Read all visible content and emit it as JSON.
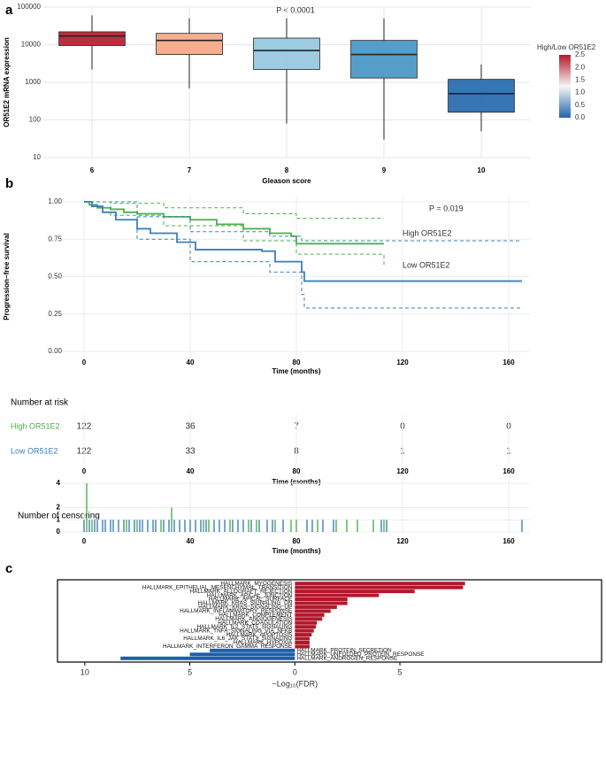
{
  "chart_data": [
    {
      "type": "box",
      "label": "a",
      "annotation": "P < 0.0001",
      "x_label": "Gleason score",
      "y_label": "OR51E2 mRNA expression",
      "categories": [
        "6",
        "7",
        "8",
        "9",
        "10"
      ],
      "min": [
        2200,
        700,
        80,
        30,
        50
      ],
      "q1": [
        9500,
        5500,
        2200,
        1300,
        160
      ],
      "median": [
        17000,
        13000,
        7000,
        5500,
        500
      ],
      "q3": [
        22000,
        20000,
        15000,
        13000,
        1200
      ],
      "max": [
        60000,
        50000,
        50000,
        50000,
        3000
      ],
      "colors": [
        "#b2182b",
        "#f4a582",
        "#92c5de",
        "#4393c3",
        "#2166ac"
      ],
      "log": true,
      "ylim": [
        10,
        100000
      ],
      "yticks": [
        10,
        100,
        1000,
        10000,
        100000
      ],
      "grid": true,
      "colorbar": {
        "title": "High/Low OR51E2",
        "range": [
          0,
          2.5
        ],
        "colors": [
          "#2166ac",
          "#f7f7f7",
          "#b2182b"
        ],
        "ticks": [
          {
            "value": 0,
            "label": "0.0"
          },
          {
            "value": 0.5,
            "label": "0.5"
          },
          {
            "value": 1,
            "label": "1.0"
          },
          {
            "value": 1.5,
            "label": "1.5"
          },
          {
            "value": 2,
            "label": "2.0"
          },
          {
            "value": 2.5,
            "label": "2.5"
          }
        ]
      }
    },
    {
      "type": "line",
      "label": "b",
      "step": true,
      "annotation": "P = 0.019",
      "x_label": "Time (months)",
      "y_label": "Progression−free survival",
      "xlim": [
        -8,
        168
      ],
      "xticks": [
        0,
        40,
        80,
        120,
        160
      ],
      "ylim": [
        -0.04,
        1.04
      ],
      "yticks": [
        {
          "value": 0,
          "label": "0.00"
        },
        {
          "value": 0.25,
          "label": "0.25"
        },
        {
          "value": 0.5,
          "label": "0.50"
        },
        {
          "value": 0.75,
          "label": "0.75"
        },
        {
          "value": 1,
          "label": "1.00"
        }
      ],
      "grid": true,
      "series": [
        {
          "name": "High OR51E2",
          "color": "#4daf4a",
          "x": [
            0,
            2,
            5,
            10,
            15,
            20,
            30,
            40,
            50,
            60,
            70,
            78,
            80,
            113
          ],
          "values": [
            1,
            0.98,
            0.96,
            0.95,
            0.93,
            0.92,
            0.9,
            0.88,
            0.85,
            0.82,
            0.79,
            0.77,
            0.72,
            0.72
          ],
          "ci_x": [
            0,
            10,
            30,
            60,
            80,
            113
          ],
          "ci_upper": [
            1,
            0.99,
            0.96,
            0.92,
            0.89,
            0.89
          ],
          "ci_lower": [
            1,
            0.91,
            0.84,
            0.74,
            0.65,
            0.57
          ]
        },
        {
          "name": "Low OR51E2",
          "color": "#3a7fbf",
          "x": [
            0,
            3,
            7,
            12,
            20,
            25,
            35,
            42,
            67,
            72,
            82,
            83,
            165
          ],
          "values": [
            1,
            0.97,
            0.93,
            0.88,
            0.82,
            0.79,
            0.73,
            0.68,
            0.67,
            0.6,
            0.53,
            0.47,
            0.47
          ],
          "ci_x": [
            0,
            20,
            40,
            70,
            82,
            83,
            165
          ],
          "ci_upper": [
            1,
            0.9,
            0.8,
            0.77,
            0.74,
            0.74,
            0.74
          ],
          "ci_lower": [
            1,
            0.75,
            0.6,
            0.53,
            0.38,
            0.29,
            0.29
          ]
        }
      ]
    },
    {
      "type": "table",
      "title": "Number at risk",
      "x_label": "Time (months)",
      "xlim": [
        -8,
        168
      ],
      "xticks": [
        0,
        40,
        80,
        120,
        160
      ],
      "series": [
        {
          "name": "High OR51E2",
          "color": "#4daf4a",
          "values": [
            122,
            36,
            7,
            0,
            0
          ]
        },
        {
          "name": "Low OR51E2",
          "color": "#3a7fbf",
          "values": [
            122,
            33,
            8,
            1,
            1
          ]
        }
      ]
    },
    {
      "type": "bar",
      "title": "Number of censoring",
      "x_label": "Time (months)",
      "xlim": [
        -8,
        168
      ],
      "xticks": [
        0,
        40,
        80,
        120,
        160
      ],
      "ylim": [
        0,
        4.2
      ],
      "yticks": [
        0,
        1,
        2,
        4
      ],
      "series": [
        {
          "color": "#3a7fbf",
          "x": [
            0,
            2,
            4,
            5,
            7,
            8,
            10,
            11,
            13,
            15,
            17,
            19,
            21,
            22,
            24,
            26,
            27,
            30,
            32,
            34,
            36,
            38,
            40,
            42,
            44,
            46,
            49,
            51,
            53,
            56,
            58,
            60,
            63,
            66,
            69,
            71,
            75,
            84,
            86,
            90,
            94,
            112,
            114,
            165
          ],
          "values": [
            1,
            1,
            1,
            1,
            1,
            1,
            1,
            1,
            1,
            1,
            1,
            1,
            1,
            1,
            1,
            1,
            1,
            1,
            1,
            1,
            1,
            1,
            1,
            1,
            1,
            1,
            1,
            1,
            1,
            1,
            1,
            1,
            1,
            1,
            1,
            1,
            1,
            1,
            1,
            1,
            1,
            1,
            1,
            1
          ]
        },
        {
          "color": "#4daf4a",
          "x": [
            1,
            3,
            16,
            20,
            29,
            33,
            45,
            47,
            55,
            62,
            65,
            72,
            78,
            80,
            88,
            95,
            99,
            103,
            109,
            113
          ],
          "values": [
            4,
            1,
            1,
            1,
            1,
            2,
            1,
            1,
            1,
            1,
            1,
            1,
            1,
            1,
            1,
            1,
            1,
            1,
            1,
            1
          ]
        }
      ]
    },
    {
      "type": "bar",
      "orientation": "horizontal",
      "label": "c",
      "x_label": "−Log₁₀(FDR)",
      "xlim": [
        -11.3,
        14.6
      ],
      "xticks": [
        {
          "value": -10,
          "label": "10"
        },
        {
          "value": -5,
          "label": "5"
        },
        0,
        5
      ],
      "positive_color": "#b2182b",
      "negative_color": "#1f5fa5",
      "categories": [
        "HALLMARK_MYOGENESIS",
        "HALLMARK_EPITHELIAL_MESENCHYMAL_TRANSITION",
        "HALLMARK_ALLOGRAFT_REJECTION",
        "HALLMARK_APICAL_JUNCTION",
        "HALLMARK_APICAL_SURFACE",
        "HALLMARK_KRAS_SIGNALING_DN",
        "HALLMARK_KRAS_SIGNALING_UP",
        "HALLMARK_INFLAMMATORY_RESPONSE",
        "HALLMARK_COMPLEMENT",
        "HALLMARK_ANGIOGENESIS",
        "HALLMARK_COAGULATION",
        "HALLMARK_IL2_STAT5_SIGNALING",
        "HALLMARK_TNFA_SIGNALING_VIA_NFKB",
        "HALLMARK_APOPTOSIS",
        "HALLMARK_IL6_JAK_STAT3_SIGNALING",
        "HALLMARK_HYPOXIA",
        "HALLMARK_INTERFERON_GAMMA_RESPONSE",
        "HALLMARK_PROTEIN_SECRETION",
        "HALLMARK_UNFOLDED_PROTEIN_RESPONSE",
        "HALLMARK_ANDROGEN_RESPONSE"
      ],
      "values": [
        8.1,
        8.0,
        5.7,
        4.0,
        2.5,
        2.5,
        2.0,
        1.7,
        1.4,
        1.3,
        1.05,
        1.0,
        0.9,
        0.8,
        0.7,
        0.7,
        0.7,
        -4.05,
        -5.0,
        -8.3
      ]
    }
  ]
}
